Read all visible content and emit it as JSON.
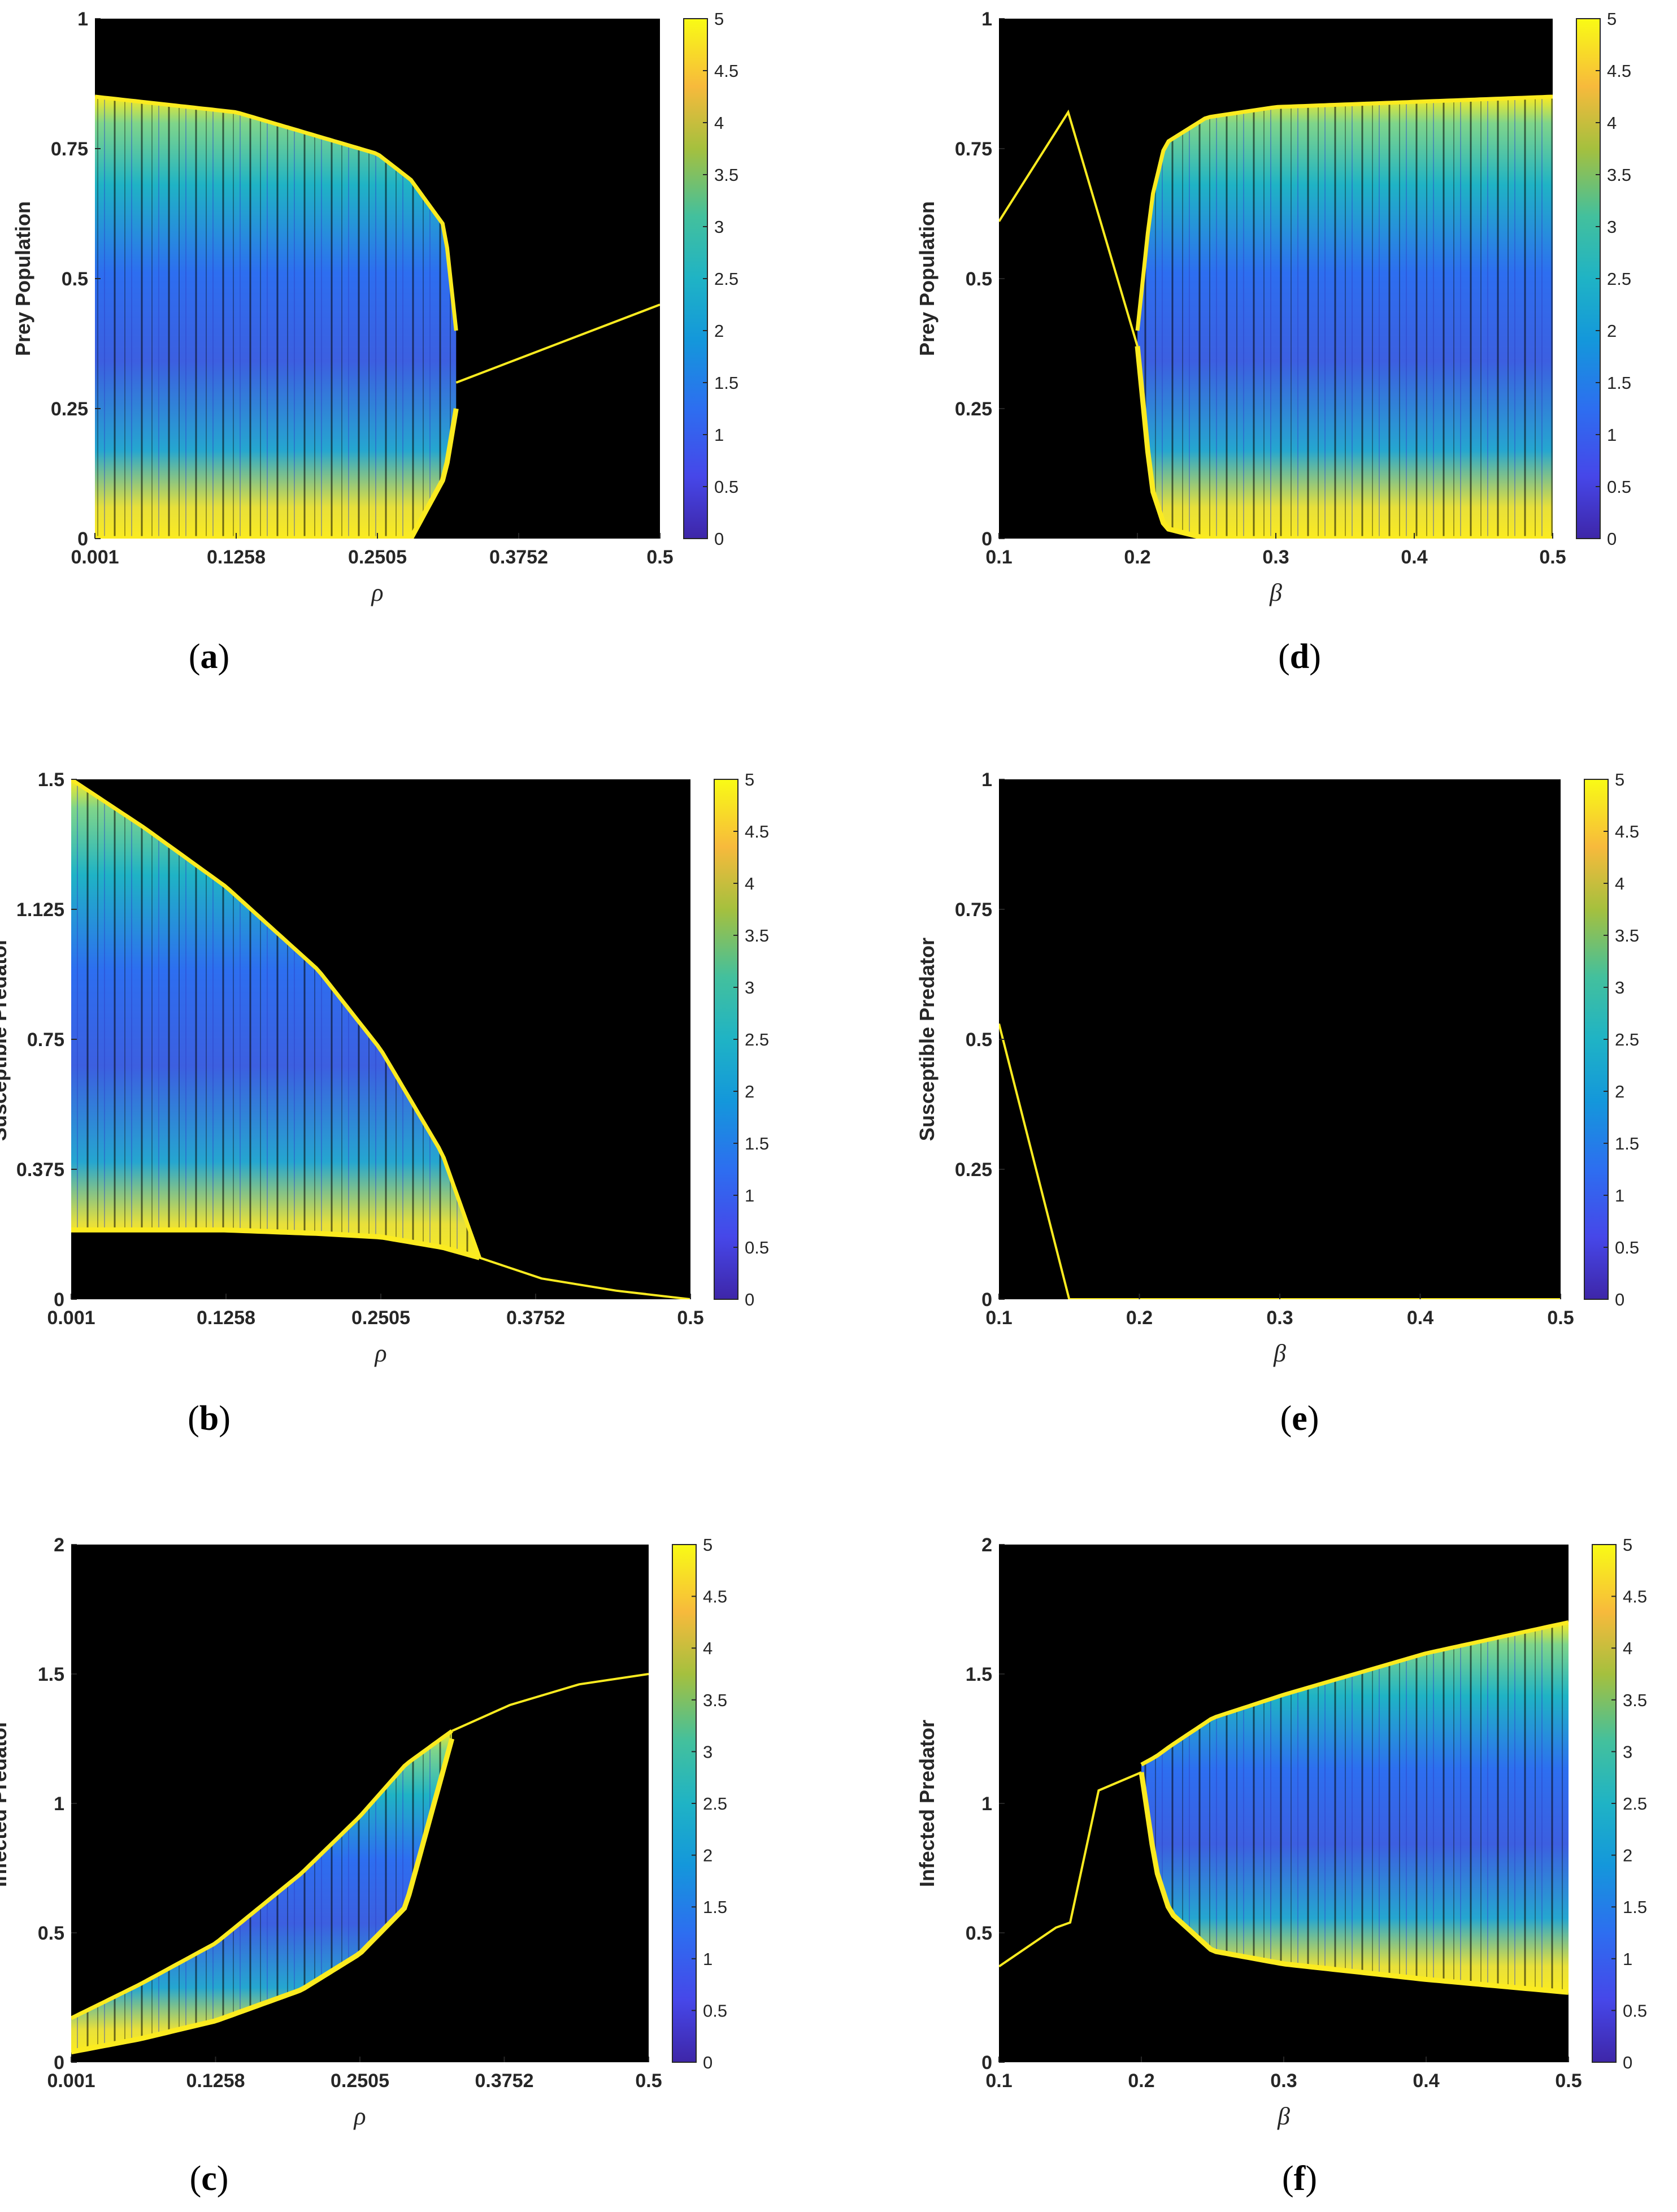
{
  "colors": {
    "background": "#000000",
    "accent_yellow": "#fbeb20",
    "accent_teal": "#1fb3c5",
    "accent_blue": "#2d6ef0",
    "accent_purple": "#3e26a8"
  },
  "chart_data": [
    {
      "panel": "(a)",
      "panel_letter": "a",
      "type": "heatmap",
      "xlabel": "ρ",
      "ylabel": "Prey Population",
      "xlim": [
        0.001,
        0.5
      ],
      "ylim": [
        0,
        1
      ],
      "xticks": [
        "0.001",
        "0.1258",
        "0.2505",
        "0.3752",
        "0.5"
      ],
      "yticks": [
        "0",
        "0.25",
        "0.5",
        "0.75",
        "1"
      ],
      "colorbar": {
        "min": 0,
        "max": 5,
        "ticks": [
          "0",
          "0.5",
          "1",
          "1.5",
          "2",
          "2.5",
          "3",
          "3.5",
          "4",
          "4.5",
          "5"
        ]
      },
      "chaotic_band": {
        "x": [
          0.001,
          0.1258,
          0.2505,
          0.28,
          0.31,
          0.32
        ],
        "lower": [
          0.0,
          0.0,
          0.0,
          0.0,
          0.12,
          0.25
        ],
        "upper": [
          0.85,
          0.82,
          0.74,
          0.69,
          0.6,
          0.4
        ]
      },
      "stable_branch": {
        "x": [
          0.32,
          0.5
        ],
        "y": [
          0.3,
          0.45
        ]
      }
    },
    {
      "panel": "(b)",
      "panel_letter": "b",
      "type": "heatmap",
      "xlabel": "ρ",
      "ylabel": "Susceptible Predator",
      "xlim": [
        0.001,
        0.5
      ],
      "ylim": [
        0,
        1.5
      ],
      "xticks": [
        "0.001",
        "0.1258",
        "0.2505",
        "0.3752",
        "0.5"
      ],
      "yticks": [
        "0",
        "0.375",
        "0.75",
        "1.125",
        "1.5"
      ],
      "colorbar": {
        "min": 0,
        "max": 5,
        "ticks": [
          "0",
          "0.5",
          "1",
          "1.5",
          "2",
          "2.5",
          "3",
          "3.5",
          "4",
          "4.5",
          "5"
        ]
      },
      "chaotic_band": {
        "x": [
          0.001,
          0.06,
          0.1258,
          0.2,
          0.2505,
          0.3,
          0.33
        ],
        "lower": [
          0.2,
          0.2,
          0.2,
          0.19,
          0.18,
          0.15,
          0.12
        ],
        "upper": [
          1.5,
          1.36,
          1.19,
          0.95,
          0.72,
          0.42,
          0.12
        ]
      },
      "stable_branch": {
        "x": [
          0.33,
          0.38,
          0.44,
          0.5
        ],
        "y": [
          0.12,
          0.06,
          0.025,
          0.0
        ]
      }
    },
    {
      "panel": "(c)",
      "panel_letter": "c",
      "type": "heatmap",
      "xlabel": "ρ",
      "ylabel": "Infected Predator",
      "xlim": [
        0.001,
        0.5
      ],
      "ylim": [
        0,
        2
      ],
      "xticks": [
        "0.001",
        "0.1258",
        "0.2505",
        "0.3752",
        "0.5"
      ],
      "yticks": [
        "0",
        "0.5",
        "1",
        "1.5",
        "2"
      ],
      "colorbar": {
        "min": 0,
        "max": 5,
        "ticks": [
          "0",
          "0.5",
          "1",
          "1.5",
          "2",
          "2.5",
          "3",
          "3.5",
          "4",
          "4.5",
          "5"
        ]
      },
      "chaotic_band": {
        "x": [
          0.001,
          0.06,
          0.1258,
          0.2,
          0.2505,
          0.29,
          0.33
        ],
        "lower": [
          0.04,
          0.09,
          0.16,
          0.28,
          0.42,
          0.6,
          1.25
        ],
        "upper": [
          0.17,
          0.3,
          0.46,
          0.73,
          0.95,
          1.15,
          1.28
        ]
      },
      "stable_branch": {
        "x": [
          0.33,
          0.38,
          0.44,
          0.5
        ],
        "y": [
          1.28,
          1.38,
          1.46,
          1.5
        ]
      }
    },
    {
      "panel": "(d)",
      "panel_letter": "d",
      "type": "heatmap",
      "xlabel": "β",
      "ylabel": "Prey Population",
      "xlim": [
        0.1,
        0.5
      ],
      "ylim": [
        0,
        1
      ],
      "xticks": [
        "0.1",
        "0.2",
        "0.3",
        "0.4",
        "0.5"
      ],
      "yticks": [
        "0",
        "0.25",
        "0.5",
        "0.75",
        "1"
      ],
      "colorbar": {
        "min": 0,
        "max": 5,
        "ticks": [
          "0",
          "0.5",
          "1",
          "1.5",
          "2",
          "2.5",
          "3",
          "3.5",
          "4",
          "4.5",
          "5"
        ]
      },
      "chaotic_band": {
        "x": [
          0.2,
          0.21,
          0.22,
          0.25,
          0.3,
          0.4,
          0.5
        ],
        "lower": [
          0.37,
          0.1,
          0.02,
          0.0,
          0.0,
          0.0,
          0.0
        ],
        "upper": [
          0.4,
          0.65,
          0.76,
          0.81,
          0.83,
          0.84,
          0.85
        ]
      },
      "stable_branch": {
        "x": [
          0.1,
          0.15,
          0.18,
          0.2
        ],
        "y": [
          0.61,
          0.82,
          0.55,
          0.37
        ]
      }
    },
    {
      "panel": "(e)",
      "panel_letter": "e",
      "type": "heatmap",
      "xlabel": "β",
      "ylabel": "Susceptible Predator",
      "xlim": [
        0.1,
        0.5
      ],
      "ylim": [
        0,
        1
      ],
      "xticks": [
        "0.1",
        "0.2",
        "0.3",
        "0.4",
        "0.5"
      ],
      "yticks": [
        "0",
        "0.25",
        "0.5",
        "0.75",
        "1"
      ],
      "colorbar": {
        "min": 0,
        "max": 5,
        "ticks": [
          "0",
          "0.5",
          "1",
          "1.5",
          "2",
          "2.5",
          "3",
          "3.5",
          "4",
          "4.5",
          "5"
        ]
      },
      "chaotic_band": null,
      "stable_branch": {
        "x": [
          0.1,
          0.15,
          0.5
        ],
        "y": [
          0.53,
          0.0,
          0.0
        ]
      }
    },
    {
      "panel": "(f)",
      "panel_letter": "f",
      "type": "heatmap",
      "xlabel": "β",
      "ylabel": "Infected Predator",
      "xlim": [
        0.1,
        0.5
      ],
      "ylim": [
        0,
        2
      ],
      "xticks": [
        "0.1",
        "0.2",
        "0.3",
        "0.4",
        "0.5"
      ],
      "yticks": [
        "0",
        "0.5",
        "1",
        "1.5",
        "2"
      ],
      "colorbar": {
        "min": 0,
        "max": 5,
        "ticks": [
          "0",
          "0.5",
          "1",
          "1.5",
          "2",
          "2.5",
          "3",
          "3.5",
          "4",
          "4.5",
          "5"
        ]
      },
      "chaotic_band": {
        "x": [
          0.2,
          0.21,
          0.22,
          0.25,
          0.3,
          0.4,
          0.5
        ],
        "lower": [
          1.12,
          0.75,
          0.58,
          0.43,
          0.38,
          0.32,
          0.27
        ],
        "upper": [
          1.15,
          1.18,
          1.22,
          1.33,
          1.42,
          1.58,
          1.7
        ]
      },
      "stable_branch": {
        "x": [
          0.1,
          0.14,
          0.15,
          0.17,
          0.2
        ],
        "y": [
          0.37,
          0.52,
          0.54,
          1.05,
          1.12
        ]
      }
    }
  ]
}
